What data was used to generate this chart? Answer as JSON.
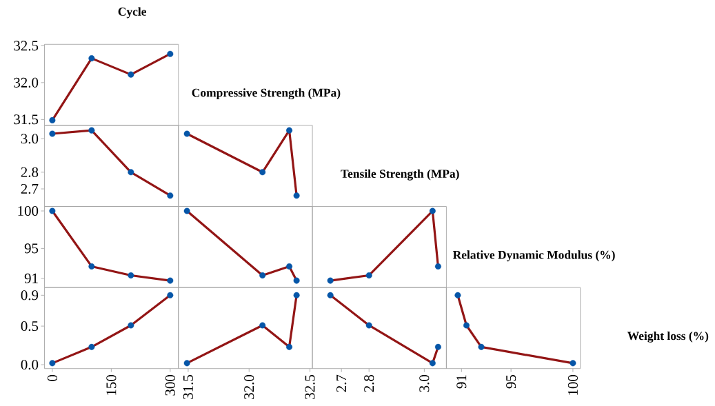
{
  "chart_data": [
    {
      "type": "other",
      "annotations": [
        "Cycle",
        "Compressive Strength (MPa)",
        "Tensile Strength (MPa)",
        "Relative Dynamic Modulus (%)",
        "Weight loss (%)"
      ]
    },
    {
      "type": "line",
      "tick_labels": "y",
      "x": [
        0,
        100,
        200,
        300
      ],
      "xlim": [
        -20,
        321
      ],
      "ylim": [
        31.42,
        32.52
      ],
      "yticks": [
        31.5,
        {
          "value": 32,
          "label": "32.0"
        },
        32.5
      ],
      "series": [
        {
          "type": "line",
          "color": "#931515",
          "values": [
            31.49,
            32.33,
            32.11,
            32.39
          ]
        },
        {
          "type": "scatter",
          "marker": "circle",
          "color": "#0656a8",
          "values": [
            31.49,
            32.33,
            32.11,
            32.39
          ]
        }
      ]
    },
    {
      "type": "line",
      "tick_labels": "y",
      "x": [
        0,
        100,
        200,
        300
      ],
      "xlim": [
        -20,
        321
      ],
      "ylim": [
        2.595,
        3.08
      ],
      "yticks": [
        2.7,
        2.8,
        {
          "value": 3,
          "label": "3.0"
        }
      ],
      "series": [
        {
          "type": "line",
          "color": "#931515",
          "values": [
            3.03,
            3.05,
            2.8,
            2.66
          ]
        },
        {
          "type": "scatter",
          "marker": "circle",
          "color": "#0656a8",
          "values": [
            3.03,
            3.05,
            2.8,
            2.66
          ]
        }
      ]
    },
    {
      "type": "line",
      "tick_labels": false,
      "x": [
        31.49,
        32.11,
        32.33,
        32.39
      ],
      "xlim": [
        31.42,
        32.52
      ],
      "ylim": [
        2.595,
        3.08
      ],
      "series": [
        {
          "type": "line",
          "color": "#931515",
          "values": [
            3.03,
            2.8,
            3.05,
            2.66
          ]
        },
        {
          "type": "scatter",
          "marker": "circle",
          "color": "#0656a8",
          "values": [
            3.03,
            2.8,
            3.05,
            2.66
          ]
        }
      ]
    },
    {
      "type": "line",
      "tick_labels": "y",
      "x": [
        0,
        100,
        200,
        300
      ],
      "xlim": [
        -20,
        321
      ],
      "ylim": [
        89.78,
        100.6
      ],
      "yticks": [
        91,
        95,
        100
      ],
      "series": [
        {
          "type": "line",
          "color": "#931515",
          "values": [
            100,
            92.6,
            91.4,
            90.7
          ]
        },
        {
          "type": "scatter",
          "marker": "circle",
          "color": "#0656a8",
          "values": [
            100,
            92.6,
            91.4,
            90.7
          ]
        }
      ]
    },
    {
      "type": "line",
      "tick_labels": false,
      "x": [
        31.49,
        32.11,
        32.33,
        32.39
      ],
      "xlim": [
        31.42,
        32.52
      ],
      "ylim": [
        89.78,
        100.6
      ],
      "series": [
        {
          "type": "line",
          "color": "#931515",
          "values": [
            100,
            91.4,
            92.6,
            90.7
          ]
        },
        {
          "type": "scatter",
          "marker": "circle",
          "color": "#0656a8",
          "values": [
            100,
            91.4,
            92.6,
            90.7
          ]
        }
      ]
    },
    {
      "type": "line",
      "tick_labels": false,
      "x": [
        2.66,
        2.8,
        3.03,
        3.05
      ],
      "xlim": [
        2.595,
        3.08
      ],
      "ylim": [
        89.78,
        100.6
      ],
      "series": [
        {
          "type": "line",
          "color": "#931515",
          "values": [
            90.7,
            91.4,
            100,
            92.6
          ]
        },
        {
          "type": "scatter",
          "marker": "circle",
          "color": "#0656a8",
          "values": [
            90.7,
            91.4,
            100,
            92.6
          ]
        }
      ]
    },
    {
      "type": "line",
      "x": [
        0,
        100,
        200,
        300
      ],
      "xlim": [
        -20,
        321
      ],
      "ylim": [
        -0.05,
        1.0
      ],
      "xticks": [
        0,
        150,
        300
      ],
      "yticks": [
        {
          "value": 0,
          "label": "0.0"
        },
        0.5,
        0.9
      ],
      "series": [
        {
          "type": "line",
          "color": "#931515",
          "values": [
            0.02,
            0.23,
            0.51,
            0.9
          ]
        },
        {
          "type": "scatter",
          "marker": "circle",
          "color": "#0656a8",
          "values": [
            0.02,
            0.23,
            0.51,
            0.9
          ]
        }
      ]
    },
    {
      "type": "line",
      "tick_labels": "x",
      "x": [
        31.49,
        32.11,
        32.33,
        32.39
      ],
      "xlim": [
        31.42,
        32.52
      ],
      "ylim": [
        -0.05,
        1.0
      ],
      "xticks": [
        31.5,
        {
          "value": 32,
          "label": "32.0"
        },
        32.5
      ],
      "series": [
        {
          "type": "line",
          "color": "#931515",
          "values": [
            0.02,
            0.51,
            0.23,
            0.9
          ]
        },
        {
          "type": "scatter",
          "marker": "circle",
          "color": "#0656a8",
          "values": [
            0.02,
            0.51,
            0.23,
            0.9
          ]
        }
      ]
    },
    {
      "type": "line",
      "tick_labels": "x",
      "x": [
        2.66,
        2.8,
        3.03,
        3.05
      ],
      "xlim": [
        2.595,
        3.08
      ],
      "ylim": [
        -0.05,
        1.0
      ],
      "xticks": [
        2.7,
        2.8,
        {
          "value": 3,
          "label": "3.0"
        }
      ],
      "series": [
        {
          "type": "line",
          "color": "#931515",
          "values": [
            0.9,
            0.51,
            0.02,
            0.23
          ]
        },
        {
          "type": "scatter",
          "marker": "circle",
          "color": "#0656a8",
          "values": [
            0.9,
            0.51,
            0.02,
            0.23
          ]
        }
      ]
    },
    {
      "type": "line",
      "tick_labels": "x",
      "x": [
        90.7,
        91.4,
        92.6,
        100
      ],
      "xlim": [
        89.78,
        100.6
      ],
      "ylim": [
        -0.05,
        1.0
      ],
      "xticks": [
        91,
        95,
        100
      ],
      "series": [
        {
          "type": "line",
          "color": "#931515",
          "values": [
            0.9,
            0.51,
            0.23,
            0.02
          ]
        },
        {
          "type": "scatter",
          "marker": "circle",
          "color": "#0656a8",
          "values": [
            0.9,
            0.51,
            0.23,
            0.02
          ]
        }
      ]
    }
  ]
}
